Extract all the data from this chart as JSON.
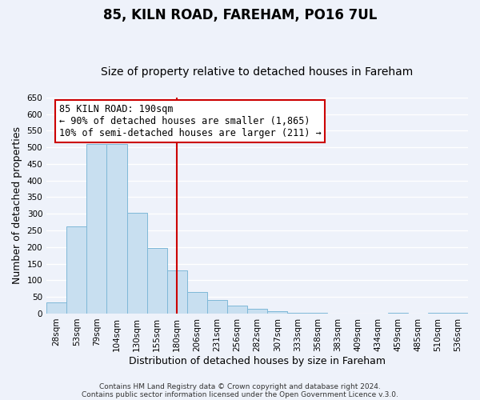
{
  "title": "85, KILN ROAD, FAREHAM, PO16 7UL",
  "subtitle": "Size of property relative to detached houses in Fareham",
  "xlabel": "Distribution of detached houses by size in Fareham",
  "ylabel": "Number of detached properties",
  "footer_line1": "Contains HM Land Registry data © Crown copyright and database right 2024.",
  "footer_line2": "Contains public sector information licensed under the Open Government Licence v.3.0.",
  "categories": [
    "28sqm",
    "53sqm",
    "79sqm",
    "104sqm",
    "130sqm",
    "155sqm",
    "180sqm",
    "206sqm",
    "231sqm",
    "256sqm",
    "282sqm",
    "307sqm",
    "333sqm",
    "358sqm",
    "383sqm",
    "409sqm",
    "434sqm",
    "459sqm",
    "485sqm",
    "510sqm",
    "536sqm"
  ],
  "values": [
    33,
    263,
    511,
    511,
    302,
    197,
    130,
    65,
    40,
    23,
    15,
    8,
    2,
    2,
    0,
    0,
    0,
    2,
    0,
    2,
    2
  ],
  "bar_color": "#c8dff0",
  "bar_edge_color": "#7fb8d8",
  "ref_bar_index": 6.5,
  "reference_line_color": "#cc0000",
  "annotation_line1": "85 KILN ROAD: 190sqm",
  "annotation_line2": "← 90% of detached houses are smaller (1,865)",
  "annotation_line3": "10% of semi-detached houses are larger (211) →",
  "annotation_box_facecolor": "#ffffff",
  "annotation_box_edgecolor": "#cc0000",
  "ylim": [
    0,
    650
  ],
  "yticks": [
    0,
    50,
    100,
    150,
    200,
    250,
    300,
    350,
    400,
    450,
    500,
    550,
    600,
    650
  ],
  "background_color": "#eef2fa",
  "grid_color": "#ffffff",
  "title_fontsize": 12,
  "subtitle_fontsize": 10,
  "axis_label_fontsize": 9,
  "tick_fontsize": 7.5,
  "footer_fontsize": 6.5
}
